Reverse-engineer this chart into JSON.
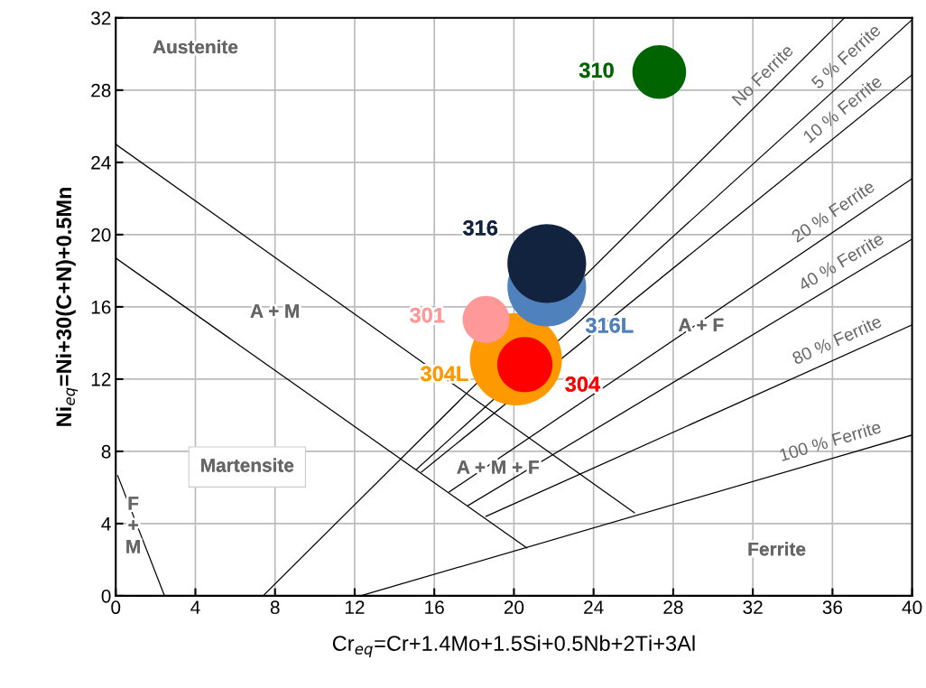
{
  "chart_data": {
    "type": "line",
    "xlabel": "Cr$_{eq}$=Cr+1.4Mo+1.5Si+0.5Nb+2Ti+3Al",
    "ylabel": "Ni$_{eq}$=Ni+30(C+N)+0.5Mn",
    "xlim": [
      0,
      40
    ],
    "ylim": [
      0,
      32
    ],
    "xticks": [
      0,
      4,
      8,
      12,
      16,
      20,
      24,
      28,
      32,
      36,
      40
    ],
    "yticks": [
      0,
      4,
      8,
      12,
      16,
      20,
      24,
      28,
      32
    ],
    "grid": true,
    "marker": "none",
    "line_style": "solid",
    "series": [
      {
        "color": "#000000",
        "x": [
          0,
          26.05
        ],
        "values": [
          25,
          4.6
        ]
      },
      {
        "color": "#000000",
        "x": [
          0,
          20.65
        ],
        "values": [
          18.7,
          2.65
        ]
      },
      {
        "color": "#000000",
        "x": [
          0.1,
          2.45
        ],
        "values": [
          6.65,
          0
        ]
      },
      {
        "name": "No Ferrite",
        "color": "#000000",
        "x": [
          7.4,
          36.6
        ],
        "values": [
          0,
          32
        ]
      },
      {
        "name": "5 % Ferrite",
        "color": "#000000",
        "x": [
          15.1,
          40
        ],
        "values": [
          7.0,
          31.9
        ]
      },
      {
        "name": "10 % Ferrite",
        "color": "#000000",
        "x": [
          15.35,
          40
        ],
        "values": [
          6.85,
          28.85
        ]
      },
      {
        "name": "20 % Ferrite",
        "color": "#000000",
        "x": [
          16.75,
          40
        ],
        "values": [
          5.75,
          23.1
        ]
      },
      {
        "name": "40 % Ferrite",
        "color": "#000000",
        "x": [
          17.7,
          40
        ],
        "values": [
          5.0,
          19.75
        ]
      },
      {
        "name": "80 % Ferrite",
        "color": "#000000",
        "x": [
          18.6,
          40
        ],
        "values": [
          4.4,
          15.0
        ]
      },
      {
        "name": "100 % Ferrite",
        "color": "#000000",
        "x": [
          12.3,
          40
        ],
        "values": [
          0,
          8.9
        ]
      },
      {
        "type": "bubble",
        "name": "304L",
        "color": "#ff9900",
        "x": [
          20.1
        ],
        "values": [
          13.1
        ],
        "sizes": [
          1
        ],
        "marker": "circle"
      },
      {
        "type": "bubble",
        "name": "304",
        "color": "#ff0000",
        "x": [
          20.55
        ],
        "values": [
          12.8
        ],
        "sizes": [
          0.36
        ],
        "marker": "circle"
      },
      {
        "type": "bubble",
        "name": "301",
        "color": "#ff9999",
        "x": [
          18.6
        ],
        "values": [
          15.3
        ],
        "sizes": [
          0.26
        ],
        "marker": "circle"
      },
      {
        "type": "bubble",
        "name": "316L",
        "color": "#4f81bd",
        "x": [
          21.65
        ],
        "values": [
          17.1
        ],
        "sizes": [
          0.73
        ],
        "marker": "circle"
      },
      {
        "type": "bubble",
        "name": "316",
        "color": "#12233f",
        "x": [
          21.65
        ],
        "values": [
          18.4
        ],
        "sizes": [
          0.73
        ],
        "marker": "circle"
      },
      {
        "type": "bubble",
        "name": "310",
        "color": "#006400",
        "x": [
          27.3
        ],
        "values": [
          29.0
        ],
        "sizes": [
          0.34
        ],
        "marker": "circle"
      }
    ],
    "annotations": [
      "Austenite",
      "A + M",
      "Martensite",
      "A + M + F",
      "A + F",
      "Ferrite",
      "F\n+\nM"
    ]
  }
}
